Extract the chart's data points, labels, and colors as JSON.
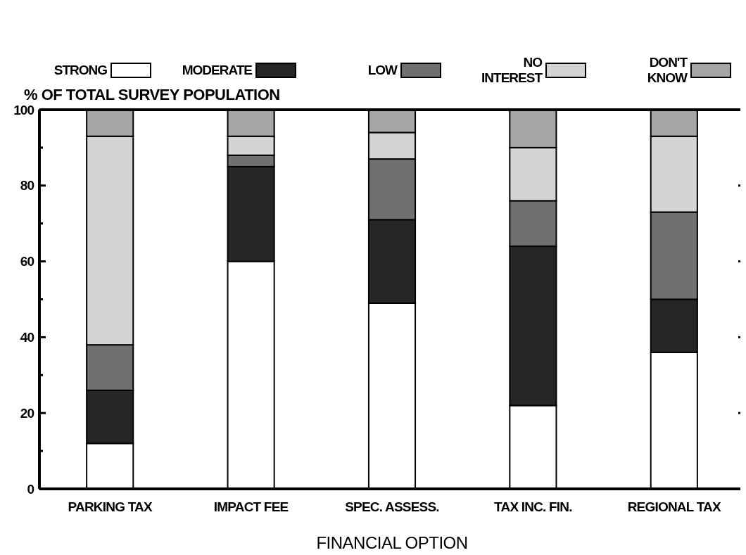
{
  "chart_data": {
    "type": "bar",
    "stacked": true,
    "xlabel": "FINANCIAL OPTION",
    "ylabel": "% OF TOTAL SURVEY POPULATION",
    "categories": [
      "PARKING TAX",
      "IMPACT FEE",
      "SPEC. ASSESS.",
      "TAX INC. FIN.",
      "REGIONAL TAX"
    ],
    "series": [
      {
        "name": "STRONG",
        "color": "#ffffff",
        "values": [
          12,
          60,
          49,
          22,
          36
        ]
      },
      {
        "name": "MODERATE",
        "color": "#262626",
        "values": [
          14,
          25,
          22,
          42,
          14
        ]
      },
      {
        "name": "LOW",
        "color": "#707070",
        "values": [
          12,
          3,
          16,
          12,
          23
        ]
      },
      {
        "name": "NO INTEREST",
        "color": "#d4d4d4",
        "values": [
          55,
          5,
          7,
          14,
          20
        ]
      },
      {
        "name": "DON'T KNOW",
        "color": "#a6a6a6",
        "values": [
          7,
          7,
          6,
          10,
          7
        ]
      }
    ],
    "ylim": [
      0,
      100
    ],
    "yticks": [
      0,
      {
        "value": 10,
        "label": null
      },
      20,
      {
        "value": 30,
        "label": null
      },
      40,
      {
        "value": 50,
        "label": null
      },
      60,
      {
        "value": 70,
        "label": null
      },
      80,
      {
        "value": 90,
        "label": null
      },
      100
    ],
    "legend": "top",
    "grid": false
  }
}
